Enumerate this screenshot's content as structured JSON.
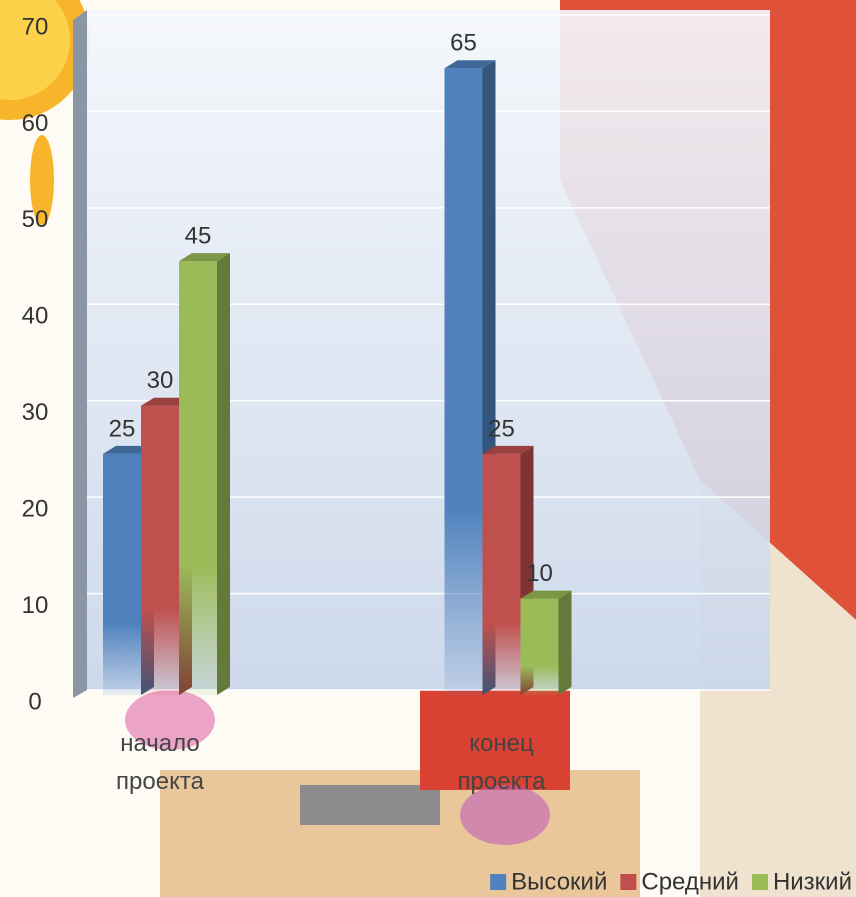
{
  "chart_data": {
    "type": "bar3d",
    "categories": [
      "начало проекта",
      "конец проекта"
    ],
    "series": [
      {
        "name": "Высокий",
        "color": "#4f81bd",
        "values": [
          25,
          65
        ]
      },
      {
        "name": "Средний",
        "color": "#c0504d",
        "values": [
          30,
          25
        ]
      },
      {
        "name": "Низкий",
        "color": "#9bbb59",
        "values": [
          45,
          10
        ]
      }
    ],
    "ylim": [
      0,
      70
    ],
    "yticks": [
      0,
      10,
      20,
      30,
      40,
      50,
      60,
      70
    ],
    "grid": true,
    "legend": "bottom-right"
  }
}
